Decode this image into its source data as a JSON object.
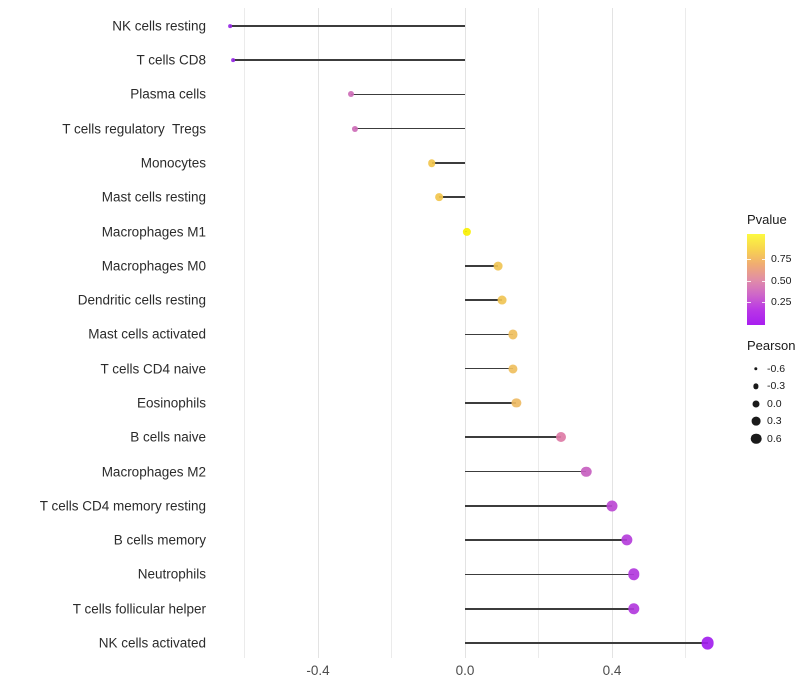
{
  "chart_data": {
    "type": "scatter",
    "subtype": "lollipop",
    "title": "",
    "xlabel": "",
    "ylabel": "",
    "x_axis": {
      "tick_labels": [
        "-0.4",
        "0.0",
        "0.4"
      ],
      "tick_values": [
        -0.4,
        0.0,
        0.4
      ],
      "xlim": [
        -0.69,
        0.7
      ],
      "gridline_values": [
        -0.6,
        -0.4,
        -0.2,
        0.0,
        0.2,
        0.4,
        0.6
      ],
      "grid": "vertical-only"
    },
    "points": [
      {
        "label": "NK cells resting",
        "pearson": -0.64,
        "color": "#9729E5"
      },
      {
        "label": "T cells CD8",
        "pearson": -0.63,
        "color": "#9729E5"
      },
      {
        "label": "Plasma cells",
        "pearson": -0.31,
        "color": "#CD6CB7"
      },
      {
        "label": "T cells regulatory  Tregs",
        "pearson": -0.3,
        "color": "#CD6CB7"
      },
      {
        "label": "Monocytes",
        "pearson": -0.09,
        "color": "#F2C64D"
      },
      {
        "label": "Mast cells resting",
        "pearson": -0.07,
        "color": "#F2C64D"
      },
      {
        "label": "Macrophages M1",
        "pearson": 0.005,
        "color": "#F9F003"
      },
      {
        "label": "Macrophages M0",
        "pearson": 0.09,
        "color": "#F0C455"
      },
      {
        "label": "Dendritic cells resting",
        "pearson": 0.1,
        "color": "#F0C455"
      },
      {
        "label": "Mast cells activated",
        "pearson": 0.13,
        "color": "#EFBF5E"
      },
      {
        "label": "T cells CD4 naive",
        "pearson": 0.13,
        "color": "#EFBF5E"
      },
      {
        "label": "Eosinophils",
        "pearson": 0.14,
        "color": "#EEBB64"
      },
      {
        "label": "B cells naive",
        "pearson": 0.26,
        "color": "#DD7BA6"
      },
      {
        "label": "Macrophages M2",
        "pearson": 0.33,
        "color": "#C75FC0"
      },
      {
        "label": "T cells CD4 memory resting",
        "pearson": 0.4,
        "color": "#BC49D4"
      },
      {
        "label": "B cells memory",
        "pearson": 0.44,
        "color": "#B53EDB"
      },
      {
        "label": "Neutrophils",
        "pearson": 0.46,
        "color": "#B23ADD"
      },
      {
        "label": "T cells follicular helper",
        "pearson": 0.46,
        "color": "#B23ADD"
      },
      {
        "label": "NK cells activated",
        "pearson": 0.66,
        "color": "#A21EEE"
      }
    ],
    "legends": {
      "pvalue": {
        "title": "Pvalue",
        "tick_labels": [
          "0.75",
          "0.50",
          "0.25"
        ],
        "tick_fractions_from_top": [
          0.275,
          0.513,
          0.751
        ],
        "gradient_top_to_bottom": [
          "#FCF93F",
          "#F8D44F",
          "#F0AC72",
          "#E18EA6",
          "#CE67C9",
          "#B937E6",
          "#A81EF0"
        ]
      },
      "pearson": {
        "title": "Pearson",
        "entry_labels": [
          "-0.6",
          "-0.3",
          "0.0",
          "0.3",
          "0.6"
        ],
        "entry_values": [
          -0.6,
          -0.3,
          0.0,
          0.3,
          0.6
        ]
      }
    }
  }
}
